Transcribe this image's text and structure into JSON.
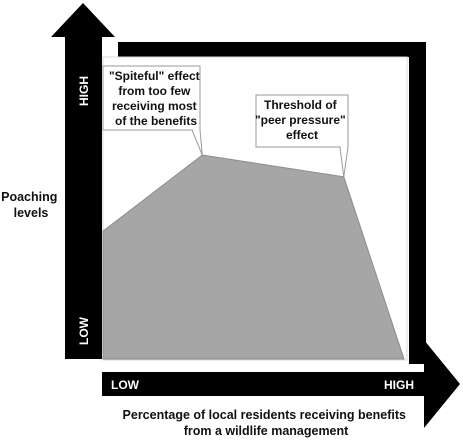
{
  "chart_data": {
    "type": "area",
    "title": "",
    "ylabel": [
      "Poaching",
      "levels"
    ],
    "xlabel": [
      "Percentage of local residents receiving benefits",
      "from a wildlife management"
    ],
    "y_axis_ticks": {
      "high": "HIGH",
      "low": "LOW"
    },
    "x_axis_ticks": {
      "low": "LOW",
      "high": "HIGH"
    },
    "xlim": [
      0,
      100
    ],
    "ylim": [
      0,
      100
    ],
    "series": [
      {
        "x": [
          0,
          33,
          80,
          100,
          100,
          0
        ],
        "y": [
          47,
          75,
          67,
          0,
          0,
          0
        ]
      }
    ],
    "annotations": [
      {
        "id": "spiteful",
        "lines": [
          "\"Spiteful\" effect",
          "from too few",
          "receiving most",
          "of the benefits"
        ],
        "point": [
          33,
          75
        ]
      },
      {
        "id": "threshold",
        "lines": [
          "Threshold of",
          "\"peer pressure\"",
          "effect"
        ],
        "point": [
          80,
          67
        ]
      }
    ]
  }
}
